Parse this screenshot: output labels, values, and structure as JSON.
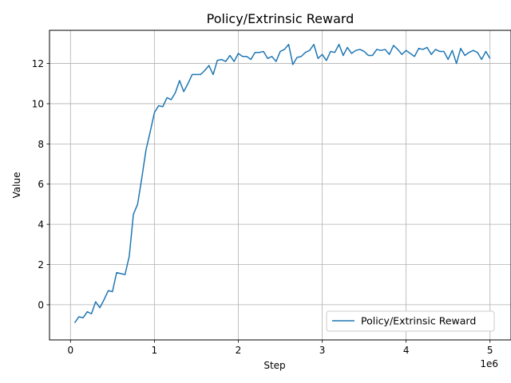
{
  "chart_data": {
    "type": "line",
    "title": "Policy/Extrinsic Reward",
    "xlabel": "Step",
    "ylabel": "Value",
    "x_multiplier_label": "1e6",
    "xlim": [
      -250000,
      5250000
    ],
    "ylim": [
      -1.75,
      13.65
    ],
    "x_ticks": [
      0,
      1000000,
      2000000,
      3000000,
      4000000,
      5000000
    ],
    "x_tick_labels": [
      "0",
      "1",
      "2",
      "3",
      "4",
      "5"
    ],
    "y_ticks": [
      0,
      2,
      4,
      6,
      8,
      10,
      12
    ],
    "y_tick_labels": [
      "0",
      "2",
      "4",
      "6",
      "8",
      "10",
      "12"
    ],
    "grid": true,
    "legend_position": "lower-right",
    "series_color": "#1f77b4",
    "series": [
      {
        "name": "Policy/Extrinsic Reward",
        "x": [
          50000,
          100000,
          150000,
          200000,
          250000,
          300000,
          350000,
          400000,
          450000,
          500000,
          550000,
          600000,
          650000,
          700000,
          750000,
          800000,
          850000,
          900000,
          950000,
          1000000,
          1050000,
          1100000,
          1150000,
          1200000,
          1250000,
          1300000,
          1350000,
          1400000,
          1450000,
          1500000,
          1550000,
          1600000,
          1650000,
          1700000,
          1750000,
          1800000,
          1850000,
          1900000,
          1950000,
          2000000,
          2050000,
          2100000,
          2150000,
          2200000,
          2250000,
          2300000,
          2350000,
          2400000,
          2450000,
          2500000,
          2550000,
          2600000,
          2650000,
          2700000,
          2750000,
          2800000,
          2850000,
          2900000,
          2950000,
          3000000,
          3050000,
          3100000,
          3150000,
          3200000,
          3250000,
          3300000,
          3350000,
          3400000,
          3450000,
          3500000,
          3550000,
          3600000,
          3650000,
          3700000,
          3750000,
          3800000,
          3850000,
          3900000,
          3950000,
          4000000,
          4050000,
          4100000,
          4150000,
          4200000,
          4250000,
          4300000,
          4350000,
          4400000,
          4450000,
          4500000,
          4550000,
          4600000,
          4650000,
          4700000,
          4750000,
          4800000,
          4850000,
          4900000,
          4950000,
          5000000
        ],
        "y": [
          -0.9,
          -0.6,
          -0.65,
          -0.35,
          -0.45,
          0.15,
          -0.15,
          0.25,
          0.7,
          0.65,
          1.6,
          1.55,
          1.5,
          2.4,
          4.5,
          5.0,
          6.3,
          7.7,
          8.6,
          9.55,
          9.9,
          9.85,
          10.3,
          10.2,
          10.55,
          11.15,
          10.6,
          11.0,
          11.45,
          11.45,
          11.45,
          11.65,
          11.9,
          11.45,
          12.15,
          12.2,
          12.1,
          12.4,
          12.1,
          12.5,
          12.35,
          12.35,
          12.2,
          12.55,
          12.55,
          12.6,
          12.25,
          12.35,
          12.1,
          12.6,
          12.7,
          12.95,
          11.95,
          12.3,
          12.35,
          12.55,
          12.65,
          12.95,
          12.25,
          12.45,
          12.15,
          12.6,
          12.55,
          12.95,
          12.4,
          12.8,
          12.5,
          12.65,
          12.7,
          12.6,
          12.4,
          12.4,
          12.7,
          12.65,
          12.7,
          12.45,
          12.9,
          12.7,
          12.45,
          12.65,
          12.5,
          12.35,
          12.75,
          12.7,
          12.8,
          12.45,
          12.7,
          12.6,
          12.6,
          12.2,
          12.65,
          12.0,
          12.75,
          12.4,
          12.55,
          12.65,
          12.55,
          12.2,
          12.6,
          12.25
        ]
      }
    ]
  }
}
